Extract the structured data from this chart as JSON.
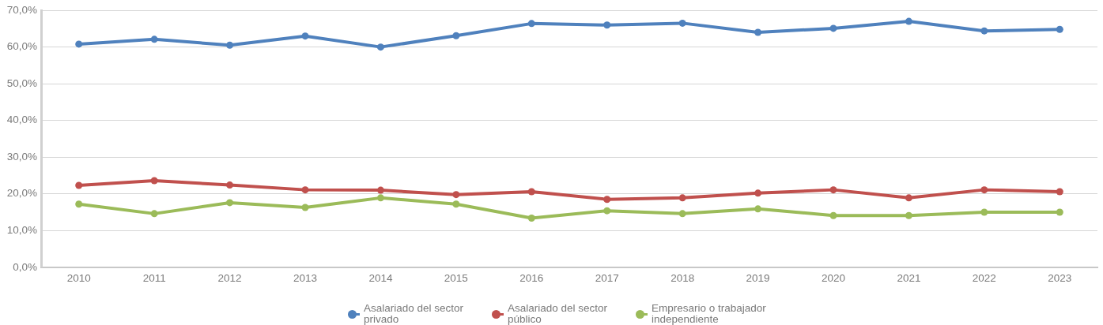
{
  "chart_data": {
    "type": "line",
    "categories": [
      "2010",
      "2011",
      "2012",
      "2013",
      "2014",
      "2015",
      "2016",
      "2017",
      "2018",
      "2019",
      "2020",
      "2021",
      "2022",
      "2023"
    ],
    "series": [
      {
        "name": "Asalariado del sector privado",
        "color": "#4f81bd",
        "values": [
          60.8,
          62.1,
          60.5,
          63.0,
          60.0,
          63.1,
          66.4,
          66.0,
          66.5,
          64.0,
          65.1,
          67.0,
          64.4,
          64.8
        ]
      },
      {
        "name": "Asalariado del sector público",
        "color": "#c0504d",
        "values": [
          22.3,
          23.6,
          22.4,
          21.1,
          21.0,
          19.8,
          20.6,
          18.5,
          18.9,
          20.2,
          21.1,
          18.9,
          21.1,
          20.6
        ]
      },
      {
        "name": "Empresario o trabajador independiente",
        "color": "#9bbb59",
        "values": [
          17.2,
          14.6,
          17.6,
          16.3,
          18.9,
          17.2,
          13.4,
          15.4,
          14.6,
          15.9,
          14.1,
          14.1,
          15.0,
          15.0
        ]
      }
    ],
    "ylim": [
      0,
      70
    ],
    "yticks": [
      {
        "value": 0,
        "label": "0,0%"
      },
      {
        "value": 10,
        "label": "10,0%"
      },
      {
        "value": 20,
        "label": "20,0%"
      },
      {
        "value": 30,
        "label": "30,0%"
      },
      {
        "value": 40,
        "label": "40,0%"
      },
      {
        "value": 50,
        "label": "50,0%"
      },
      {
        "value": 60,
        "label": "60,0%"
      },
      {
        "value": 70,
        "label": "70,0%"
      }
    ],
    "grid": "y",
    "legend": "bottom",
    "marker": "circle",
    "line_style": "solid"
  }
}
